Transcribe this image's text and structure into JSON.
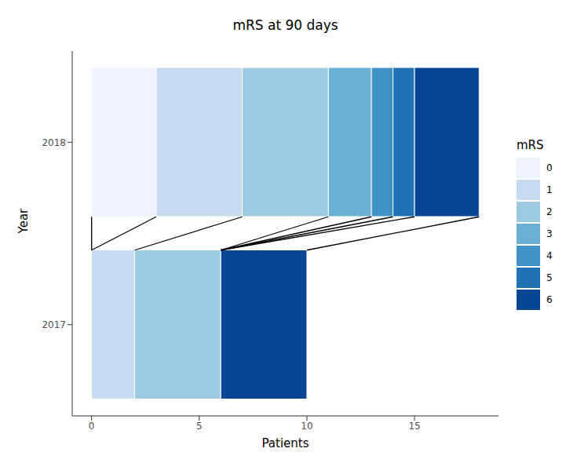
{
  "chart_data": {
    "type": "bar",
    "title": "mRS at 90 days",
    "x_label": "Patients",
    "y_label": "Year",
    "legend_title": "mRS",
    "orientation": "horizontal",
    "stacked": true,
    "legend": "right",
    "grid": false,
    "categories": [
      "2017",
      "2018"
    ],
    "series": [
      {
        "name": "0",
        "color": "#EFF3FF",
        "values": [
          0,
          3
        ]
      },
      {
        "name": "1",
        "color": "#C6DBEF",
        "values": [
          2,
          4
        ]
      },
      {
        "name": "2",
        "color": "#9ECAE1",
        "values": [
          4,
          4
        ]
      },
      {
        "name": "3",
        "color": "#6BAED6",
        "values": [
          0,
          2
        ]
      },
      {
        "name": "4",
        "color": "#4292C6",
        "values": [
          0,
          1
        ]
      },
      {
        "name": "5",
        "color": "#2171B5",
        "values": [
          0,
          1
        ]
      },
      {
        "name": "6",
        "color": "#084594",
        "values": [
          4,
          3
        ]
      }
    ],
    "xlim": [
      -0.9,
      18.9
    ],
    "xticks": [
      0,
      5,
      10,
      15
    ]
  }
}
